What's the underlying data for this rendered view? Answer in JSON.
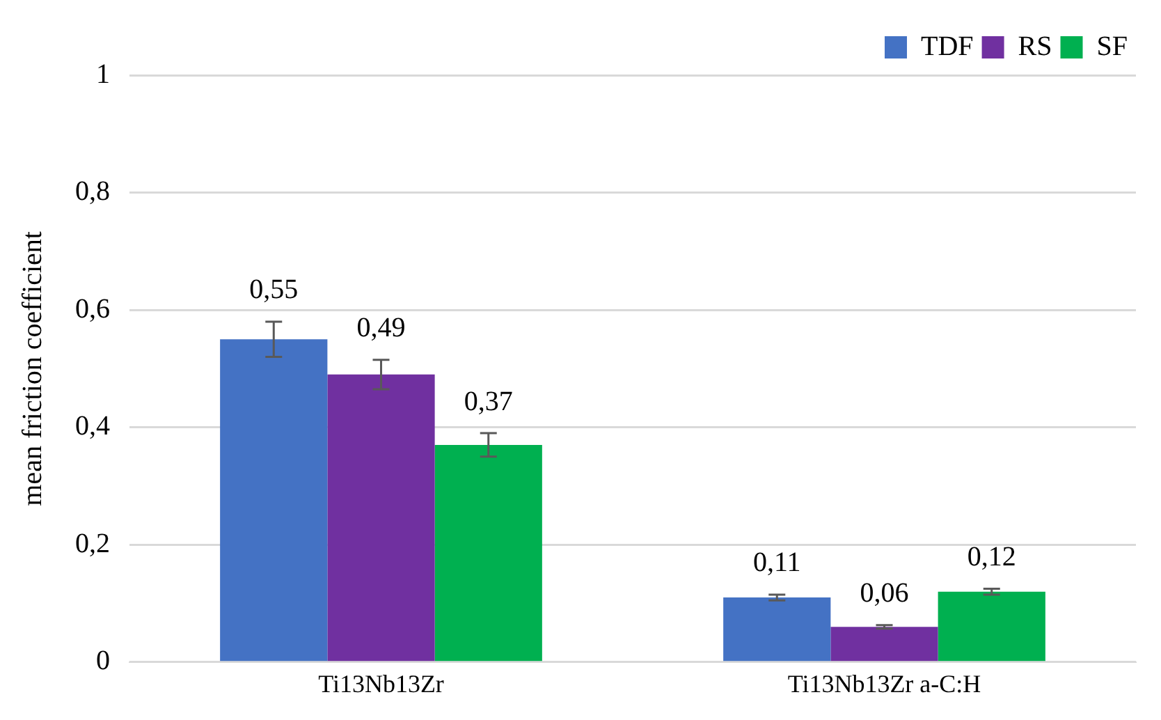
{
  "chart_data": {
    "type": "bar",
    "ylabel": "mean friction coefficient",
    "categories": [
      "Ti13Nb13Zr",
      "Ti13Nb13Zr a-C:H"
    ],
    "series": [
      {
        "name": "TDF",
        "color": "#4472c4",
        "values": [
          0.55,
          0.11
        ],
        "errors": [
          0.03,
          0.005
        ],
        "value_labels": [
          "0,55",
          "0,11"
        ]
      },
      {
        "name": "RS",
        "color": "#7030a0",
        "values": [
          0.49,
          0.06
        ],
        "errors": [
          0.025,
          0.003
        ],
        "value_labels": [
          "0,49",
          "0,06"
        ]
      },
      {
        "name": "SF",
        "color": "#00b050",
        "values": [
          0.37,
          0.12
        ],
        "errors": [
          0.02,
          0.005
        ],
        "value_labels": [
          "0,37",
          "0,12"
        ]
      }
    ],
    "ylim": [
      0,
      1
    ],
    "yticks": [
      0,
      {
        "value": 0.2,
        "label": "0,2"
      },
      {
        "value": 0.4,
        "label": "0,4"
      },
      {
        "value": 0.6,
        "label": "0,6"
      },
      {
        "value": 0.8,
        "label": "0,8"
      },
      1
    ],
    "grid": "y",
    "legend": "top right"
  }
}
